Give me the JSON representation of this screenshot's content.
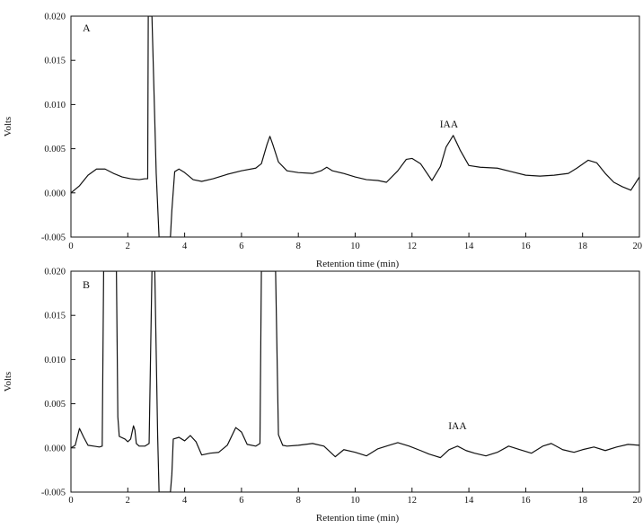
{
  "chart_data": [
    {
      "type": "line",
      "panel_label": "A",
      "xlabel": "Retention time (min)",
      "ylabel": "Volts",
      "xlim": [
        0,
        20
      ],
      "ylim": [
        -0.005,
        0.02
      ],
      "x_ticks": [
        "0",
        "2",
        "4",
        "6",
        "8",
        "10",
        "12",
        "14",
        "16",
        "18",
        "20"
      ],
      "y_ticks": [
        "-0.005",
        "0.000",
        "0.005",
        "0.010",
        "0.015",
        "0.020"
      ],
      "grid": false,
      "annotations": [
        {
          "text": "IAA",
          "x": 13.3,
          "y": 0.0068
        }
      ],
      "series": [
        {
          "x": [
            0,
            0.3,
            0.6,
            0.9,
            1.2,
            1.5,
            1.8,
            2.1,
            2.4,
            2.6,
            2.7,
            2.72,
            2.8,
            2.85,
            3.0,
            3.1,
            3.2,
            3.3,
            3.4,
            3.5,
            3.55,
            3.65,
            3.8,
            4.0,
            4.3,
            4.6,
            5.0,
            5.5,
            6.0,
            6.5,
            6.7,
            6.9,
            7.0,
            7.1,
            7.3,
            7.6,
            8.0,
            8.5,
            8.8,
            9.0,
            9.2,
            9.6,
            10.0,
            10.4,
            10.8,
            11.1,
            11.5,
            11.8,
            12.0,
            12.3,
            12.7,
            13.0,
            13.2,
            13.45,
            13.7,
            14.0,
            14.4,
            15.0,
            15.5,
            16.0,
            16.5,
            17.0,
            17.5,
            17.8,
            18.2,
            18.5,
            18.8,
            19.1,
            19.4,
            19.7,
            20.0
          ],
          "y": [
            0.0,
            0.0008,
            0.002,
            0.0027,
            0.0027,
            0.0022,
            0.0018,
            0.0016,
            0.0015,
            0.0016,
            0.0016,
            0.02,
            0.02,
            0.02,
            0.0022,
            -0.005,
            -0.005,
            -0.005,
            -0.005,
            -0.005,
            -0.002,
            0.0024,
            0.0027,
            0.0023,
            0.0015,
            0.0013,
            0.0016,
            0.0021,
            0.0025,
            0.0028,
            0.0033,
            0.0055,
            0.0064,
            0.0055,
            0.0035,
            0.0025,
            0.0023,
            0.0022,
            0.0025,
            0.0029,
            0.0025,
            0.0022,
            0.0018,
            0.0015,
            0.0014,
            0.0012,
            0.0025,
            0.0038,
            0.0039,
            0.0033,
            0.0014,
            0.003,
            0.0052,
            0.0065,
            0.0048,
            0.0031,
            0.0029,
            0.0028,
            0.0024,
            0.002,
            0.0019,
            0.002,
            0.0022,
            0.0028,
            0.0037,
            0.0034,
            0.0022,
            0.0012,
            0.0007,
            0.0003,
            0.0018
          ]
        }
      ]
    },
    {
      "type": "line",
      "panel_label": "B",
      "xlabel": "Retention time (min)",
      "ylabel": "Volts",
      "xlim": [
        0,
        20
      ],
      "ylim": [
        -0.005,
        0.02
      ],
      "x_ticks": [
        "0",
        "2",
        "4",
        "6",
        "8",
        "10",
        "12",
        "14",
        "16",
        "18",
        "20"
      ],
      "y_ticks": [
        "-0.005",
        "0.000",
        "0.005",
        "0.010",
        "0.015",
        "0.020"
      ],
      "grid": false,
      "annotations": [
        {
          "text": "IAA",
          "x": 13.6,
          "y": 0.0015
        }
      ],
      "series": [
        {
          "x": [
            0,
            0.15,
            0.3,
            0.45,
            0.6,
            0.8,
            1.0,
            1.1,
            1.15,
            1.2,
            1.6,
            1.65,
            1.7,
            1.9,
            2.0,
            2.1,
            2.2,
            2.25,
            2.3,
            2.4,
            2.6,
            2.75,
            2.85,
            2.9,
            2.95,
            3.05,
            3.1,
            3.15,
            3.3,
            3.5,
            3.55,
            3.6,
            3.8,
            4.0,
            4.2,
            4.4,
            4.6,
            4.9,
            5.2,
            5.5,
            5.8,
            6.0,
            6.2,
            6.5,
            6.65,
            6.7,
            6.72,
            7.2,
            7.3,
            7.45,
            7.6,
            8.0,
            8.5,
            8.9,
            9.3,
            9.6,
            10.0,
            10.4,
            10.8,
            11.2,
            11.5,
            11.9,
            12.3,
            12.6,
            13.0,
            13.3,
            13.6,
            13.9,
            14.2,
            14.6,
            15.0,
            15.4,
            15.8,
            16.2,
            16.6,
            16.9,
            17.3,
            17.7,
            18.0,
            18.4,
            18.8,
            19.2,
            19.6,
            20.0
          ],
          "y": [
            0.0,
            0.0003,
            0.0022,
            0.0012,
            0.0003,
            0.0002,
            0.0001,
            0.0002,
            0.02,
            0.02,
            0.02,
            0.0035,
            0.0013,
            0.001,
            0.0007,
            0.001,
            0.0025,
            0.002,
            0.0005,
            0.0002,
            0.0002,
            0.0005,
            0.02,
            0.02,
            0.02,
            0.0015,
            -0.005,
            -0.005,
            -0.005,
            -0.005,
            -0.003,
            0.001,
            0.0012,
            0.0008,
            0.0014,
            0.0007,
            -0.0008,
            -0.0006,
            -0.0005,
            0.0003,
            0.0023,
            0.0018,
            0.0004,
            0.0002,
            0.0005,
            0.02,
            0.02,
            0.02,
            0.0015,
            0.0003,
            0.0002,
            0.0003,
            0.0005,
            0.0002,
            -0.001,
            -0.0002,
            -0.0005,
            -0.0009,
            -0.0001,
            0.0003,
            0.0006,
            0.0002,
            -0.0003,
            -0.0007,
            -0.0011,
            -0.0002,
            0.0002,
            -0.0003,
            -0.0006,
            -0.0009,
            -0.0005,
            0.0002,
            -0.0002,
            -0.0006,
            0.0002,
            0.0005,
            -0.0002,
            -0.0005,
            -0.0002,
            0.0001,
            -0.0003,
            0.0001,
            0.0004,
            0.0003
          ]
        }
      ]
    }
  ]
}
